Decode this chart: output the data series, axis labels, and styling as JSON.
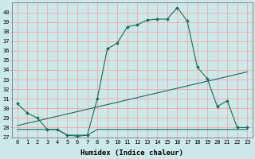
{
  "xlabel": "Humidex (Indice chaleur)",
  "bg_color": "#cce8e8",
  "grid_color": "#ff9999",
  "line_color": "#1a6b5a",
  "xlim": [
    -0.5,
    23.5
  ],
  "ylim": [
    27,
    41
  ],
  "xticks": [
    0,
    1,
    2,
    3,
    4,
    5,
    6,
    7,
    8,
    9,
    10,
    11,
    12,
    13,
    14,
    15,
    16,
    17,
    18,
    19,
    20,
    21,
    22,
    23
  ],
  "yticks": [
    27,
    28,
    29,
    30,
    31,
    32,
    33,
    34,
    35,
    36,
    37,
    38,
    39,
    40
  ],
  "line1_x": [
    0,
    1,
    2,
    3,
    4,
    5,
    6,
    7,
    8,
    9,
    10,
    11,
    12,
    13,
    14,
    15,
    16,
    17,
    18,
    19,
    20,
    21,
    22,
    23
  ],
  "line1_y": [
    30.5,
    29.5,
    29.0,
    27.8,
    27.8,
    27.2,
    27.1,
    27.2,
    31.0,
    36.2,
    36.8,
    38.5,
    38.7,
    39.2,
    39.3,
    39.3,
    40.5,
    39.1,
    34.3,
    33.1,
    30.2,
    30.8,
    28.0,
    28.0
  ],
  "line2_x": [
    0,
    23
  ],
  "line2_y": [
    28.2,
    33.8
  ],
  "line3_x": [
    0,
    4,
    5,
    6,
    7,
    8,
    9,
    10,
    11,
    12,
    13,
    14,
    15,
    16,
    17,
    18,
    19,
    20,
    21,
    22,
    23
  ],
  "line3_y": [
    27.8,
    27.8,
    27.2,
    27.2,
    27.2,
    27.8,
    27.8,
    27.8,
    27.8,
    27.8,
    27.8,
    27.8,
    27.8,
    27.8,
    27.8,
    27.8,
    27.8,
    27.8,
    27.8,
    27.8,
    27.8
  ]
}
